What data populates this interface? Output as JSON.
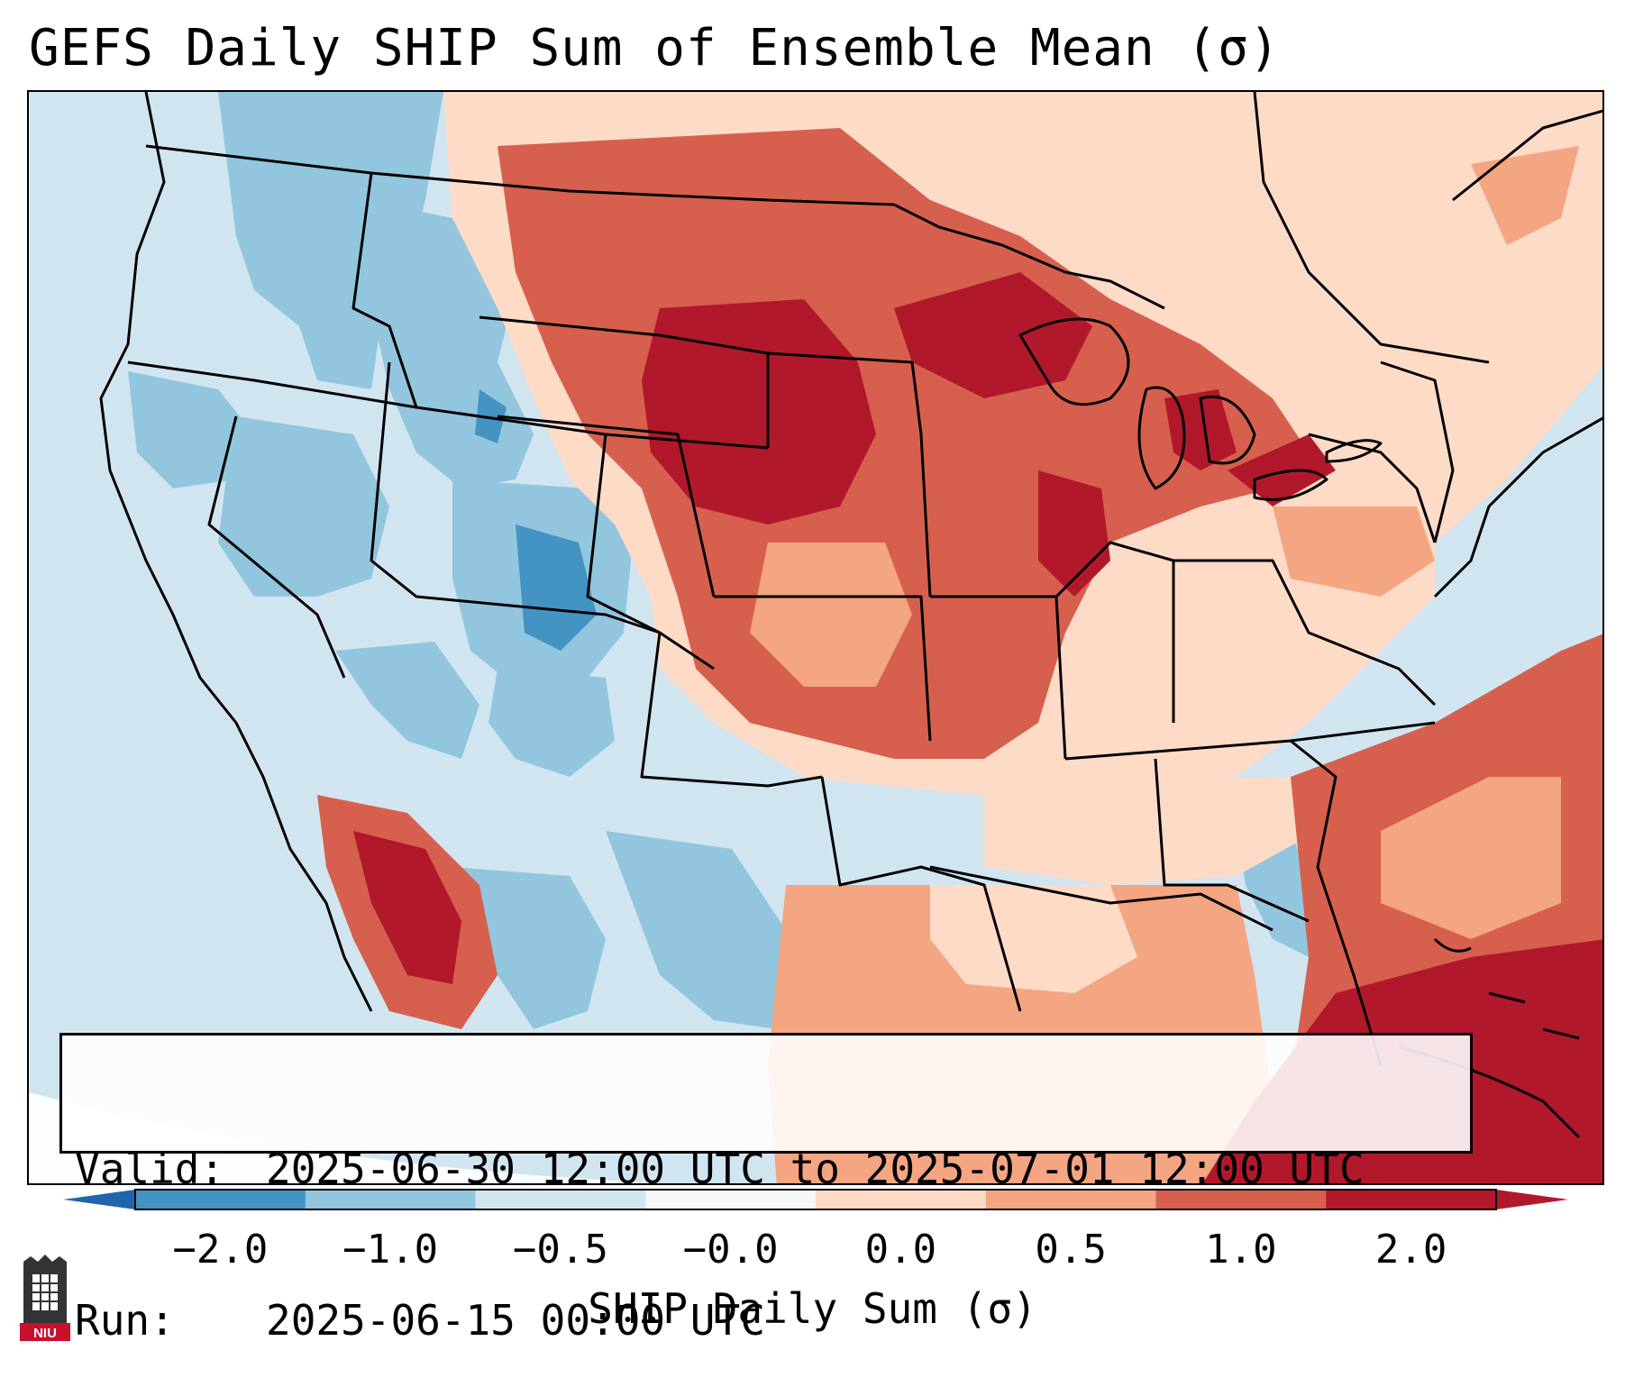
{
  "title": "GEFS Daily SHIP Sum of Ensemble Mean (σ)",
  "info": {
    "valid_label": "Valid:",
    "valid_value": "2025-06-30 12:00 UTC to 2025-07-01 12:00 UTC",
    "run_label": "Run:",
    "run_value": "2025-06-15 00:00 UTC"
  },
  "colorbar": {
    "label": "SHIP Daily Sum (σ)",
    "ticks": [
      "−2.0",
      "−1.0",
      "−0.5",
      "−0.0",
      "0.0",
      "0.5",
      "1.0",
      "2.0"
    ],
    "colors": [
      "#4393c3",
      "#92c5de",
      "#d1e5f0",
      "#f7f7f7",
      "#fddbc7",
      "#f4a582",
      "#d6604d",
      "#b2182b"
    ],
    "under_color": "#2166ac",
    "over_color": "#b2182b"
  },
  "logo": {
    "text": "NIU",
    "color": "#c8102e"
  },
  "palette": {
    "deep_blue": "#4393c3",
    "light_blue": "#92c5de",
    "pale_blue": "#d1e5f0",
    "peach": "#fddbc7",
    "salmon": "#f4a582",
    "red": "#d6604d",
    "dark_red": "#b2182b"
  }
}
